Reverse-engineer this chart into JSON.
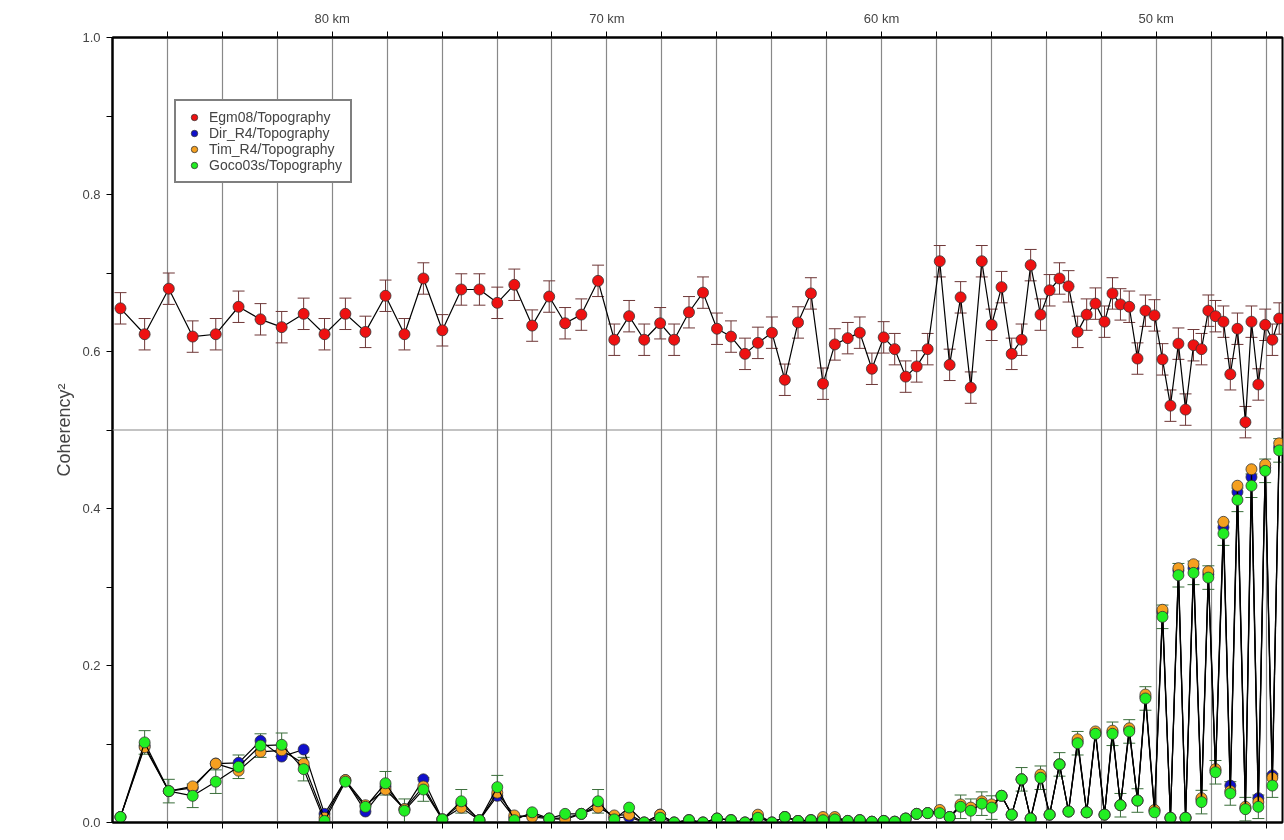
{
  "chart_data": {
    "type": "line",
    "marker": "circle",
    "line_style": "solid",
    "ylabel": "Coherency²",
    "grid": "x",
    "legend": "top left",
    "x": [
      87.71,
      86.83,
      85.95,
      85.08,
      84.24,
      83.41,
      82.61,
      81.84,
      81.04,
      80.28,
      79.52,
      78.79,
      78.06,
      77.37,
      76.68,
      75.99,
      75.3,
      74.64,
      73.99,
      73.37,
      72.72,
      72.1,
      71.52,
      70.93,
      70.32,
      69.73,
      69.19,
      68.64,
      68.06,
      67.55,
      67.01,
      66.5,
      65.99,
      65.48,
      64.97,
      64.5,
      63.99,
      63.52,
      63.04,
      62.57,
      62.13,
      61.7,
      61.23,
      60.79,
      60.35,
      59.92,
      59.52,
      59.12,
      58.72,
      58.32,
      57.88,
      57.52,
      57.12,
      56.75,
      56.35,
      55.99,
      55.63,
      55.26,
      54.9,
      54.57,
      54.21,
      53.88,
      53.52,
      53.19,
      52.86,
      52.53,
      52.21,
      51.88,
      51.59,
      51.3,
      50.98,
      50.68,
      50.39,
      50.06,
      49.77,
      49.48,
      49.19,
      48.93,
      48.64,
      48.35,
      48.1,
      47.84,
      47.55,
      47.3,
      47.04,
      46.75,
      46.53,
      46.28,
      46.03,
      45.77,
      45.52
    ],
    "xlim": [
      88,
      45.4
    ],
    "xticks": [
      {
        "value": 86,
        "label": null
      },
      {
        "value": 84,
        "label": null
      },
      {
        "value": 82,
        "label": null
      },
      {
        "value": 80,
        "label": "80 km"
      },
      {
        "value": 78,
        "label": null
      },
      {
        "value": 76,
        "label": null
      },
      {
        "value": 74,
        "label": null
      },
      {
        "value": 72,
        "label": null
      },
      {
        "value": 70,
        "label": "70 km"
      },
      {
        "value": 68,
        "label": null
      },
      {
        "value": 66,
        "label": null
      },
      {
        "value": 64,
        "label": null
      },
      {
        "value": 62,
        "label": null
      },
      {
        "value": 60,
        "label": "60 km"
      },
      {
        "value": 58,
        "label": null
      },
      {
        "value": 56,
        "label": null
      },
      {
        "value": 54,
        "label": null
      },
      {
        "value": 52,
        "label": null
      },
      {
        "value": 50,
        "label": "50 km"
      },
      {
        "value": 48,
        "label": null
      },
      {
        "value": 46,
        "label": null
      }
    ],
    "ylim": [
      0,
      1
    ],
    "yticks": [
      {
        "value": 0,
        "label": "0.0"
      },
      {
        "value": 0.1,
        "label": null
      },
      0.2,
      {
        "value": 0.3,
        "label": null
      },
      0.4,
      {
        "value": 0.5,
        "label": null
      },
      0.6,
      {
        "value": 0.7,
        "label": null
      },
      0.8,
      {
        "value": 0.9,
        "label": null
      },
      {
        "value": 1,
        "label": "1.0"
      }
    ],
    "ref_lines": [
      {
        "axis": "y",
        "value": 0.5,
        "color": "#888888"
      }
    ],
    "series": [
      {
        "name": "Egm08/Topography",
        "color": "#ee1111",
        "values": [
          0.655,
          0.622,
          0.68,
          0.619,
          0.622,
          0.657,
          0.641,
          0.631,
          0.648,
          0.622,
          0.648,
          0.625,
          0.671,
          0.622,
          0.693,
          0.627,
          0.679,
          0.679,
          0.662,
          0.685,
          0.633,
          0.67,
          0.636,
          0.647,
          0.69,
          0.615,
          0.645,
          0.615,
          0.636,
          0.615,
          0.65,
          0.675,
          0.629,
          0.619,
          0.597,
          0.611,
          0.624,
          0.564,
          0.637,
          0.674,
          0.559,
          0.609,
          0.617,
          0.624,
          0.578,
          0.618,
          0.603,
          0.568,
          0.581,
          0.603,
          0.715,
          0.583,
          0.669,
          0.554,
          0.715,
          0.634,
          0.682,
          0.597,
          0.615,
          0.71,
          0.647,
          0.678,
          0.693,
          0.683,
          0.625,
          0.647,
          0.661,
          0.638,
          0.674,
          0.66,
          0.657,
          0.591,
          0.652,
          0.646,
          0.59,
          0.531,
          0.61,
          0.526,
          0.608,
          0.603,
          0.652,
          0.645,
          0.638,
          0.571,
          0.629,
          0.51,
          0.638,
          0.558,
          0.634,
          0.615,
          0.642
        ],
        "errors": [
          0.02,
          0.02,
          0.02,
          0.02,
          0.02,
          0.02,
          0.02,
          0.02,
          0.02,
          0.02,
          0.02,
          0.02,
          0.02,
          0.02,
          0.02,
          0.02,
          0.02,
          0.02,
          0.02,
          0.02,
          0.02,
          0.02,
          0.02,
          0.02,
          0.02,
          0.02,
          0.02,
          0.02,
          0.02,
          0.02,
          0.02,
          0.02,
          0.02,
          0.02,
          0.02,
          0.02,
          0.02,
          0.02,
          0.02,
          0.02,
          0.02,
          0.02,
          0.02,
          0.02,
          0.02,
          0.02,
          0.02,
          0.02,
          0.02,
          0.02,
          0.02,
          0.02,
          0.02,
          0.02,
          0.02,
          0.02,
          0.02,
          0.02,
          0.02,
          0.02,
          0.02,
          0.02,
          0.02,
          0.02,
          0.02,
          0.02,
          0.02,
          0.02,
          0.02,
          0.02,
          0.02,
          0.02,
          0.02,
          0.02,
          0.02,
          0.02,
          0.02,
          0.02,
          0.02,
          0.02,
          0.02,
          0.02,
          0.02,
          0.02,
          0.02,
          0.02,
          0.02,
          0.02,
          0.02,
          0.02,
          0.02
        ]
      },
      {
        "name": "Dir_R4/Topography",
        "color": "#1010cc",
        "values": [
          0.007,
          0.098,
          0.04,
          0.044,
          0.075,
          0.076,
          0.104,
          0.084,
          0.093,
          0.011,
          0.054,
          0.014,
          0.046,
          0.017,
          0.055,
          0.004,
          0.024,
          0.003,
          0.034,
          0.006,
          0.01,
          0.005,
          0.006,
          0.011,
          0.022,
          0.006,
          0.007,
          0.0,
          0.01,
          0.0,
          0.003,
          0.0,
          0.005,
          0.003,
          0.0,
          0.008,
          0.0,
          0.007,
          0.002,
          0.003,
          0.005,
          0.006,
          0.002,
          0.003,
          0.001,
          0.002,
          0.001,
          0.005,
          0.011,
          0.012,
          0.014,
          0.007,
          0.021,
          0.017,
          0.025,
          0.021,
          0.034,
          0.01,
          0.055,
          0.005,
          0.059,
          0.01,
          0.074,
          0.014,
          0.103,
          0.013,
          0.114,
          0.01,
          0.115,
          0.022,
          0.118,
          0.028,
          0.16,
          0.015,
          0.268,
          0.006,
          0.321,
          0.006,
          0.324,
          0.029,
          0.316,
          0.066,
          0.376,
          0.047,
          0.421,
          0.018,
          0.44,
          0.031,
          0.452,
          0.06,
          0.478
        ]
      },
      {
        "name": "Tim_R4/Topography",
        "color": "#f5a020",
        "values": [
          0.007,
          0.096,
          0.04,
          0.046,
          0.075,
          0.066,
          0.09,
          0.092,
          0.075,
          0.006,
          0.054,
          0.022,
          0.042,
          0.017,
          0.046,
          0.004,
          0.019,
          0.003,
          0.038,
          0.009,
          0.007,
          0.005,
          0.004,
          0.011,
          0.019,
          0.009,
          0.01,
          0.0,
          0.01,
          0.0,
          0.003,
          0.0,
          0.005,
          0.003,
          0.0,
          0.01,
          0.0,
          0.007,
          0.002,
          0.003,
          0.007,
          0.007,
          0.002,
          0.003,
          0.001,
          0.002,
          0.001,
          0.005,
          0.011,
          0.012,
          0.016,
          0.007,
          0.023,
          0.019,
          0.027,
          0.023,
          0.034,
          0.01,
          0.055,
          0.005,
          0.061,
          0.01,
          0.074,
          0.014,
          0.106,
          0.013,
          0.116,
          0.01,
          0.117,
          0.022,
          0.12,
          0.028,
          0.163,
          0.016,
          0.271,
          0.006,
          0.324,
          0.006,
          0.329,
          0.031,
          0.32,
          0.068,
          0.383,
          0.04,
          0.429,
          0.02,
          0.45,
          0.026,
          0.456,
          0.057,
          0.483
        ]
      },
      {
        "name": "Goco03s/Topography",
        "color": "#22ee22",
        "values": [
          0.007,
          0.102,
          0.04,
          0.034,
          0.052,
          0.071,
          0.098,
          0.099,
          0.068,
          0.002,
          0.052,
          0.02,
          0.05,
          0.015,
          0.042,
          0.004,
          0.027,
          0.003,
          0.045,
          0.003,
          0.013,
          0.005,
          0.011,
          0.011,
          0.027,
          0.004,
          0.019,
          0.0,
          0.006,
          0.0,
          0.003,
          0.0,
          0.005,
          0.003,
          0.0,
          0.006,
          0.0,
          0.007,
          0.002,
          0.003,
          0.003,
          0.004,
          0.002,
          0.003,
          0.001,
          0.002,
          0.001,
          0.005,
          0.011,
          0.012,
          0.012,
          0.007,
          0.02,
          0.015,
          0.024,
          0.019,
          0.034,
          0.01,
          0.055,
          0.005,
          0.057,
          0.01,
          0.074,
          0.014,
          0.101,
          0.013,
          0.113,
          0.01,
          0.113,
          0.022,
          0.116,
          0.028,
          0.158,
          0.013,
          0.262,
          0.006,
          0.315,
          0.006,
          0.318,
          0.026,
          0.312,
          0.064,
          0.368,
          0.037,
          0.411,
          0.017,
          0.429,
          0.02,
          0.448,
          0.047,
          0.474
        ],
        "errors": [
          null,
          0.015,
          0.015,
          0.015,
          0.015,
          0.015,
          0.015,
          0.015,
          0.015,
          null,
          null,
          null,
          0.015,
          0.015,
          0.015,
          null,
          0.015,
          null,
          0.015,
          null,
          null,
          null,
          null,
          null,
          0.015,
          null,
          null,
          null,
          null,
          null,
          null,
          null,
          null,
          null,
          null,
          null,
          null,
          null,
          null,
          null,
          null,
          null,
          null,
          null,
          null,
          null,
          null,
          null,
          null,
          null,
          null,
          null,
          0.015,
          0.015,
          0.015,
          0.015,
          null,
          null,
          0.015,
          null,
          0.015,
          null,
          0.015,
          null,
          0.015,
          null,
          null,
          null,
          0.015,
          0.015,
          0.015,
          0.015,
          0.015,
          null,
          0.015,
          null,
          0.015,
          null,
          0.015,
          0.015,
          0.015,
          0.015,
          0.015,
          0.015,
          0.015,
          0.015,
          0.015,
          0.015,
          0.015,
          0.015,
          0.015
        ]
      }
    ]
  }
}
